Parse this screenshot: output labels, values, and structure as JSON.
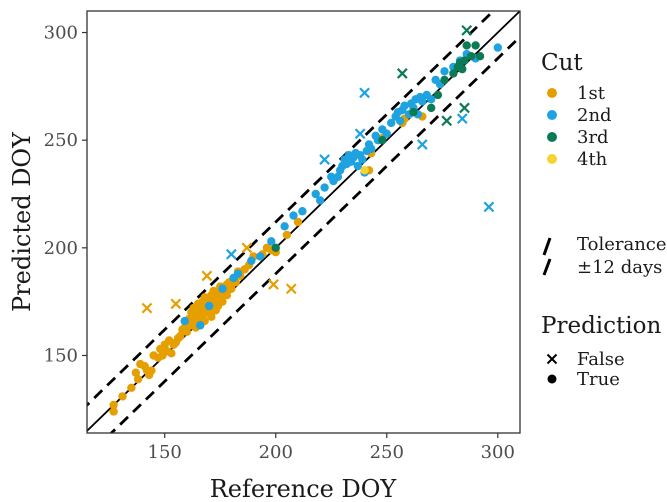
{
  "chart_data": {
    "type": "scatter",
    "xlabel": "Reference DOY",
    "ylabel": "Predicted DOY",
    "xlim": [
      115,
      310
    ],
    "ylim": [
      114,
      310
    ],
    "x_ticks": [
      150,
      200,
      250,
      300
    ],
    "y_ticks": [
      150,
      200,
      250,
      300
    ],
    "grid": false,
    "legend_position": "right",
    "reference_line": {
      "slope": 1,
      "intercept": 0,
      "style": "solid"
    },
    "tolerance": {
      "days": 12,
      "style": "dashed"
    },
    "legend": {
      "cut_title": "Cut",
      "cut_entries": [
        {
          "key": "1st",
          "label": "1st",
          "color": "#E69F00"
        },
        {
          "key": "2nd",
          "label": "2nd",
          "color": "#1FA2E0"
        },
        {
          "key": "3rd",
          "label": "3rd",
          "color": "#0B7A55"
        },
        {
          "key": "4th",
          "label": "4th",
          "color": "#F5D431"
        }
      ],
      "tolerance_label_1": "Tolerance",
      "tolerance_label_2": "±12 days",
      "prediction_title": "Prediction",
      "prediction_entries": [
        {
          "key": "False",
          "label": "False",
          "shape": "cross"
        },
        {
          "key": "True",
          "label": "True",
          "shape": "dot"
        }
      ]
    },
    "series": [
      {
        "name": "1st",
        "color": "#E69F00",
        "true_points": [
          [
            127,
            124
          ],
          [
            127,
            127
          ],
          [
            131,
            131
          ],
          [
            135,
            135
          ],
          [
            137,
            142
          ],
          [
            138,
            139
          ],
          [
            139,
            146
          ],
          [
            141,
            145
          ],
          [
            142,
            143
          ],
          [
            143,
            141
          ],
          [
            144,
            143
          ],
          [
            145,
            150
          ],
          [
            147,
            149
          ],
          [
            148,
            153
          ],
          [
            149,
            150
          ],
          [
            150,
            155
          ],
          [
            151,
            152
          ],
          [
            152,
            157
          ],
          [
            153,
            151
          ],
          [
            154,
            155
          ],
          [
            155,
            156
          ],
          [
            156,
            158
          ],
          [
            157,
            159
          ],
          [
            158,
            162
          ],
          [
            159,
            163
          ],
          [
            160,
            165
          ],
          [
            160,
            161
          ],
          [
            161,
            167
          ],
          [
            162,
            170
          ],
          [
            162,
            164
          ],
          [
            163,
            166
          ],
          [
            163,
            172
          ],
          [
            164,
            168
          ],
          [
            164,
            163
          ],
          [
            165,
            170
          ],
          [
            165,
            174
          ],
          [
            165,
            166
          ],
          [
            166,
            171
          ],
          [
            166,
            169
          ],
          [
            167,
            175
          ],
          [
            167,
            168
          ],
          [
            168,
            172
          ],
          [
            168,
            177
          ],
          [
            168,
            166
          ],
          [
            169,
            173
          ],
          [
            169,
            170
          ],
          [
            170,
            176
          ],
          [
            170,
            171
          ],
          [
            171,
            178
          ],
          [
            171,
            168
          ],
          [
            172,
            174
          ],
          [
            172,
            180
          ],
          [
            173,
            176
          ],
          [
            173,
            171
          ],
          [
            174,
            179
          ],
          [
            174,
            173
          ],
          [
            175,
            182
          ],
          [
            175,
            177
          ],
          [
            176,
            178
          ],
          [
            176,
            175
          ],
          [
            177,
            180
          ],
          [
            178,
            183
          ],
          [
            178,
            178
          ],
          [
            179,
            184
          ],
          [
            180,
            181
          ],
          [
            181,
            186
          ],
          [
            182,
            184
          ],
          [
            183,
            189
          ],
          [
            184,
            187
          ],
          [
            186,
            190
          ],
          [
            188,
            192
          ],
          [
            190,
            196
          ],
          [
            194,
            197
          ],
          [
            196,
            200
          ],
          [
            198,
            199
          ],
          [
            200,
            198
          ],
          [
            205,
            206
          ],
          [
            210,
            212
          ],
          [
            242,
            236
          ],
          [
            243,
            244
          ],
          [
            248,
            251
          ],
          [
            257,
            258
          ],
          [
            258,
            260
          ],
          [
            266,
            261
          ]
        ],
        "false_points": [
          [
            142,
            172
          ],
          [
            155,
            174
          ],
          [
            169,
            187
          ],
          [
            187,
            200
          ],
          [
            199,
            183
          ],
          [
            207,
            181
          ]
        ]
      },
      {
        "name": "2nd",
        "color": "#1FA2E0",
        "true_points": [
          [
            159,
            166
          ],
          [
            166,
            164
          ],
          [
            170,
            173
          ],
          [
            176,
            181
          ],
          [
            181,
            186
          ],
          [
            183,
            188
          ],
          [
            189,
            194
          ],
          [
            193,
            196
          ],
          [
            198,
            203
          ],
          [
            204,
            210
          ],
          [
            208,
            215
          ],
          [
            212,
            217
          ],
          [
            218,
            225
          ],
          [
            220,
            222
          ],
          [
            222,
            228
          ],
          [
            225,
            233
          ],
          [
            226,
            231
          ],
          [
            228,
            233
          ],
          [
            229,
            236
          ],
          [
            230,
            238
          ],
          [
            231,
            241
          ],
          [
            232,
            239
          ],
          [
            233,
            243
          ],
          [
            234,
            240
          ],
          [
            235,
            242
          ],
          [
            236,
            244
          ],
          [
            237,
            238
          ],
          [
            238,
            243
          ],
          [
            239,
            241
          ],
          [
            240,
            235
          ],
          [
            241,
            245
          ],
          [
            242,
            248
          ],
          [
            243,
            246
          ],
          [
            245,
            252
          ],
          [
            246,
            250
          ],
          [
            248,
            255
          ],
          [
            250,
            253
          ],
          [
            252,
            258
          ],
          [
            254,
            261
          ],
          [
            255,
            263
          ],
          [
            256,
            259
          ],
          [
            257,
            264
          ],
          [
            258,
            266
          ],
          [
            260,
            262
          ],
          [
            261,
            267
          ],
          [
            262,
            265
          ],
          [
            263,
            269
          ],
          [
            264,
            262
          ],
          [
            265,
            270
          ],
          [
            266,
            268
          ],
          [
            268,
            271
          ],
          [
            270,
            269
          ],
          [
            272,
            278
          ],
          [
            274,
            276
          ],
          [
            276,
            282
          ],
          [
            280,
            284
          ],
          [
            283,
            287
          ],
          [
            286,
            290
          ],
          [
            290,
            288
          ],
          [
            300,
            293
          ]
        ],
        "false_points": [
          [
            180,
            197
          ],
          [
            222,
            241
          ],
          [
            238,
            253
          ],
          [
            240,
            272
          ],
          [
            266,
            248
          ],
          [
            284,
            260
          ],
          [
            296,
            219
          ]
        ]
      },
      {
        "name": "3rd",
        "color": "#0B7A55",
        "true_points": [
          [
            200,
            200
          ],
          [
            248,
            250
          ],
          [
            262,
            263
          ],
          [
            270,
            265
          ],
          [
            273,
            271
          ],
          [
            276,
            278
          ],
          [
            280,
            281
          ],
          [
            282,
            284
          ],
          [
            283,
            286
          ],
          [
            284,
            283
          ],
          [
            285,
            287
          ],
          [
            286,
            294
          ],
          [
            288,
            289
          ],
          [
            292,
            289
          ],
          [
            290,
            294
          ]
        ],
        "false_points": [
          [
            257,
            281
          ],
          [
            277,
            259
          ],
          [
            285,
            265
          ],
          [
            286,
            301
          ]
        ]
      },
      {
        "name": "4th",
        "color": "#F5D431",
        "true_points": [
          [
            240,
            236
          ]
        ],
        "false_points": []
      }
    ]
  }
}
